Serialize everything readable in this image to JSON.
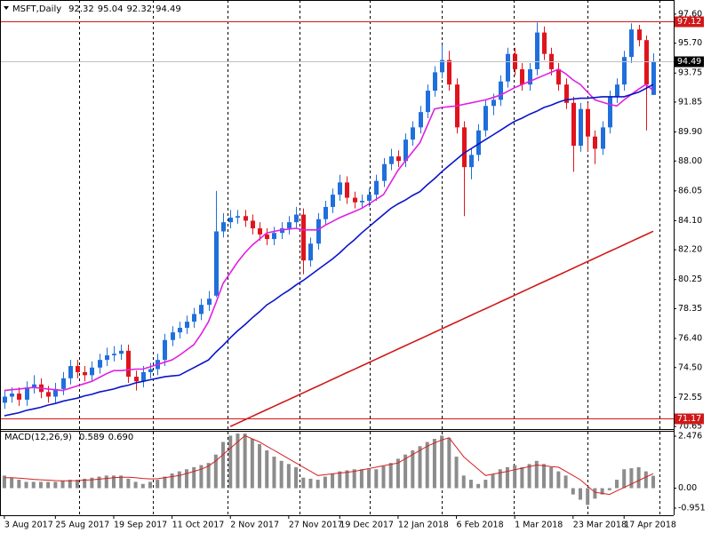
{
  "chart_data": [
    {
      "type": "candlestick",
      "title": "MSFT,Daily",
      "header_values": [
        92.32,
        95.04,
        92.32,
        94.49
      ],
      "up_color": "#1f6fdc",
      "down_color": "#e0141c",
      "x": [
        0,
        1,
        2,
        3,
        4,
        5,
        6,
        7,
        8,
        9,
        10,
        11,
        12,
        13,
        14,
        15,
        16,
        17,
        18,
        19,
        20,
        21,
        22,
        23,
        24,
        25,
        26,
        27,
        28,
        29,
        30,
        31,
        32,
        33,
        34,
        35,
        36,
        37,
        38,
        39,
        40,
        41,
        42,
        43,
        44,
        45,
        46,
        47,
        48,
        49,
        50,
        51,
        52,
        53,
        54,
        55,
        56,
        57,
        58,
        59,
        60,
        61,
        62,
        63,
        64,
        65,
        66,
        67,
        68,
        69,
        70,
        71,
        72,
        73,
        74,
        75,
        76,
        77,
        78,
        79,
        80,
        81,
        82,
        83,
        84,
        85,
        86,
        87,
        88,
        89
      ],
      "open": [
        72.2,
        72.6,
        72.8,
        72.4,
        73.2,
        73.4,
        72.9,
        72.6,
        73.1,
        73.8,
        74.6,
        74.2,
        74.0,
        74.5,
        75.0,
        75.3,
        75.4,
        75.6,
        73.9,
        73.6,
        74.2,
        74.4,
        75.0,
        76.3,
        76.8,
        77.1,
        77.5,
        78.0,
        78.6,
        79.2,
        83.4,
        84.0,
        84.3,
        84.4,
        84.1,
        83.6,
        83.2,
        82.9,
        83.3,
        83.6,
        84.0,
        84.5,
        81.5,
        82.6,
        84.2,
        85.0,
        85.8,
        86.6,
        85.6,
        85.3,
        85.4,
        85.8,
        86.7,
        87.8,
        88.3,
        88.0,
        89.4,
        90.2,
        91.2,
        92.6,
        93.8,
        94.6,
        93.0,
        90.2,
        87.6,
        88.4,
        90.0,
        91.6,
        92.0,
        93.2,
        95.0,
        94.0,
        93.0,
        94.0,
        96.4,
        95.0,
        94.0,
        93.0,
        91.8,
        89.0,
        91.4,
        89.6,
        88.8,
        90.2,
        92.2,
        93.0,
        94.8,
        96.6,
        95.9,
        92.32
      ],
      "high": [
        73.0,
        73.2,
        73.2,
        73.6,
        74.0,
        73.8,
        73.3,
        73.5,
        74.2,
        75.0,
        75.0,
        74.6,
        74.9,
        75.4,
        75.8,
        75.9,
        76.0,
        76.0,
        74.3,
        74.6,
        74.8,
        75.4,
        76.7,
        77.2,
        77.5,
        77.9,
        78.4,
        79.0,
        79.5,
        86.05,
        84.6,
        84.8,
        84.8,
        84.8,
        84.5,
        84.0,
        83.6,
        83.7,
        84.0,
        84.4,
        85.0,
        84.9,
        83.0,
        84.6,
        85.4,
        86.2,
        87.1,
        87.0,
        86.0,
        85.8,
        86.2,
        87.1,
        88.2,
        88.8,
        88.7,
        89.8,
        90.6,
        91.6,
        93.0,
        94.2,
        95.6,
        95.2,
        93.4,
        90.6,
        88.8,
        90.4,
        92.0,
        92.4,
        93.6,
        95.4,
        95.4,
        94.4,
        94.4,
        97.05,
        96.8,
        95.4,
        94.4,
        93.4,
        92.2,
        91.8,
        91.8,
        90.0,
        90.6,
        92.6,
        93.4,
        95.2,
        97.0,
        96.9,
        96.2,
        95.04
      ],
      "low": [
        71.8,
        72.2,
        72.0,
        72.0,
        72.8,
        72.5,
        72.2,
        72.2,
        72.7,
        73.4,
        73.8,
        73.6,
        73.6,
        74.1,
        74.6,
        74.9,
        75.0,
        73.5,
        73.0,
        73.2,
        73.8,
        74.0,
        74.6,
        75.9,
        76.4,
        76.7,
        77.1,
        77.6,
        78.2,
        79.1,
        83.0,
        83.6,
        83.9,
        83.7,
        83.2,
        82.8,
        82.5,
        82.5,
        82.9,
        83.2,
        83.6,
        80.6,
        81.1,
        82.2,
        83.8,
        84.6,
        85.4,
        85.2,
        84.9,
        84.9,
        85.0,
        85.4,
        86.3,
        87.4,
        87.6,
        87.6,
        89.0,
        89.8,
        90.8,
        92.2,
        93.4,
        92.6,
        89.8,
        84.4,
        86.8,
        88.0,
        89.6,
        91.0,
        91.6,
        92.8,
        93.6,
        92.6,
        92.6,
        93.6,
        94.6,
        93.6,
        92.6,
        91.4,
        87.3,
        88.6,
        88.6,
        87.8,
        88.4,
        89.8,
        91.8,
        92.6,
        94.4,
        95.5,
        90.0,
        92.32
      ],
      "close": [
        72.6,
        72.8,
        72.4,
        73.2,
        73.4,
        72.9,
        72.6,
        73.1,
        73.8,
        74.6,
        74.2,
        74.0,
        74.5,
        75.0,
        75.3,
        75.4,
        75.6,
        73.9,
        73.6,
        74.2,
        74.4,
        75.0,
        76.3,
        76.8,
        77.1,
        77.5,
        78.0,
        78.6,
        79.0,
        83.4,
        84.0,
        84.3,
        84.4,
        84.1,
        83.6,
        83.2,
        82.9,
        83.3,
        83.6,
        84.0,
        84.5,
        81.5,
        82.6,
        84.2,
        85.0,
        85.8,
        86.6,
        85.6,
        85.3,
        85.4,
        85.8,
        86.7,
        87.8,
        88.3,
        88.0,
        89.4,
        90.2,
        91.2,
        92.6,
        93.8,
        94.6,
        93.0,
        90.2,
        87.6,
        88.4,
        90.0,
        91.6,
        92.0,
        93.2,
        95.0,
        94.0,
        93.0,
        94.0,
        96.4,
        95.0,
        94.0,
        93.0,
        91.8,
        89.0,
        91.4,
        89.6,
        88.8,
        90.2,
        92.2,
        93.0,
        94.8,
        96.6,
        95.9,
        93.0,
        94.49
      ],
      "series": [
        {
          "color": "#e020e0",
          "values": [
            73.0,
            73.05,
            73.1,
            73.15,
            73.2,
            73.15,
            73.1,
            73.05,
            73.0,
            73.15,
            73.3,
            73.45,
            73.6,
            73.85,
            74.1,
            74.3,
            74.3,
            74.35,
            74.4,
            74.4,
            74.55,
            74.7,
            74.85,
            75.0,
            75.3,
            75.65,
            76.0,
            76.7,
            77.5,
            78.7,
            80.0,
            80.7,
            81.4,
            82.0,
            82.5,
            82.9,
            83.3,
            83.4,
            83.5,
            83.55,
            83.6,
            83.5,
            83.5,
            83.5,
            83.8,
            84.05,
            84.3,
            84.5,
            84.7,
            84.9,
            85.2,
            85.5,
            85.8,
            86.6,
            87.4,
            88.0,
            88.6,
            89.2,
            90.3,
            91.4,
            91.5,
            91.55,
            91.6,
            91.7,
            91.8,
            91.9,
            92.0,
            92.15,
            92.3,
            92.55,
            92.8,
            93.0,
            93.2,
            93.4,
            93.6,
            93.8,
            94.0,
            93.7,
            93.3,
            93.0,
            92.5,
            92.0,
            91.85,
            91.7,
            91.6,
            92.0,
            92.35,
            92.7,
            93.0,
            92.6
          ]
        },
        {
          "color": "#0a14c8",
          "values": [
            71.35,
            71.45,
            71.55,
            71.7,
            71.8,
            71.9,
            72.05,
            72.15,
            72.3,
            72.4,
            72.5,
            72.65,
            72.75,
            72.9,
            73.0,
            73.1,
            73.25,
            73.35,
            73.5,
            73.6,
            73.7,
            73.8,
            73.9,
            73.95,
            74.0,
            74.25,
            74.5,
            74.75,
            75.0,
            75.5,
            75.95,
            76.45,
            76.9,
            77.3,
            77.75,
            78.15,
            78.6,
            78.9,
            79.25,
            79.55,
            79.9,
            80.2,
            80.55,
            80.9,
            81.25,
            81.6,
            82.0,
            82.45,
            82.85,
            83.3,
            83.7,
            84.1,
            84.5,
            84.9,
            85.2,
            85.45,
            85.75,
            86.0,
            86.45,
            86.85,
            87.3,
            87.7,
            88.1,
            88.5,
            88.8,
            89.1,
            89.4,
            89.7,
            90.0,
            90.3,
            90.6,
            90.8,
            91.05,
            91.25,
            91.5,
            91.65,
            91.85,
            92.0,
            92.05,
            92.1,
            92.1,
            92.15,
            92.2,
            92.2,
            92.2,
            92.2,
            92.35,
            92.5,
            92.75,
            93.0
          ]
        },
        {
          "color": "#d01818",
          "values": [
            null,
            null,
            null,
            null,
            null,
            null,
            null,
            null,
            null,
            null,
            null,
            null,
            null,
            null,
            null,
            null,
            null,
            null,
            null,
            null,
            null,
            null,
            null,
            null,
            null,
            null,
            null,
            null,
            null,
            null,
            null,
            70.65,
            70.87,
            71.09,
            71.31,
            71.53,
            71.75,
            71.97,
            72.19,
            72.41,
            72.63,
            72.85,
            73.07,
            73.29,
            73.51,
            73.73,
            73.95,
            74.17,
            74.39,
            74.61,
            74.83,
            75.05,
            75.27,
            75.49,
            75.71,
            75.93,
            76.15,
            76.37,
            76.59,
            76.81,
            77.03,
            77.25,
            77.47,
            77.69,
            77.91,
            78.13,
            78.35,
            78.57,
            78.79,
            79.01,
            79.23,
            79.45,
            79.67,
            79.89,
            80.11,
            80.33,
            80.55,
            80.77,
            80.99,
            81.21,
            81.43,
            81.65,
            81.87,
            82.09,
            82.31,
            82.53,
            82.75,
            82.97,
            83.19,
            83.41
          ]
        }
      ],
      "xlim": [
        -0.6,
        91.8
      ],
      "xticks": [
        {
          "value": 0,
          "label": "3 Aug 2017"
        },
        {
          "value": 7,
          "label": "25 Aug 2017"
        },
        {
          "value": 15,
          "label": "19 Sep 2017"
        },
        {
          "value": 23,
          "label": "11 Oct 2017"
        },
        {
          "value": 31,
          "label": "2 Nov 2017"
        },
        {
          "value": 39,
          "label": "27 Nov 2017"
        },
        {
          "value": 46,
          "label": "19 Dec 2017"
        },
        {
          "value": 54,
          "label": "12 Jan 2018"
        },
        {
          "value": 62,
          "label": "6 Feb 2018"
        },
        {
          "value": 70,
          "label": "1 Mar 2018"
        },
        {
          "value": 78,
          "label": "23 Mar 2018"
        },
        {
          "value": 85,
          "label": "17 Apr 2018"
        }
      ],
      "xgrid": [
        10.2,
        20.4,
        30.6,
        40.5,
        50.1,
        60,
        69.9,
        80,
        89.8
      ],
      "ylim": [
        70.48,
        98.06
      ],
      "yticks": [
        {
          "value": 97.6,
          "label": "97.60"
        },
        {
          "value": 95.7,
          "label": "95.70"
        },
        93.75,
        91.85,
        {
          "value": 89.9,
          "label": "89.90"
        },
        {
          "value": 88,
          "label": "88.00"
        },
        86.05,
        {
          "value": 84.1,
          "label": "84.10"
        },
        {
          "value": 82.2,
          "label": "82.20"
        },
        80.25,
        78.35,
        {
          "value": 76.4,
          "label": "76.40"
        },
        {
          "value": 74.5,
          "label": "74.50"
        },
        72.55,
        70.65
      ],
      "levels": [
        {
          "value": 97.12,
          "line_color": "#d01818",
          "box_color": "#d01818"
        },
        {
          "value": 94.49,
          "line_color": "#c0c0c0",
          "box_color": "#000000"
        },
        {
          "value": 71.17,
          "line_color": "#d01818",
          "box_color": "#d01818"
        }
      ]
    },
    {
      "type": "macd",
      "title": "MACD(12,26,9)",
      "header_values": [
        0.589,
        {
          "value": 0.69,
          "label": "0.690"
        }
      ],
      "series": [
        {
          "type": "bar",
          "color": "#8c8c8c",
          "values": [
            0.6,
            0.5,
            0.4,
            0.3,
            0.3,
            0.3,
            0.3,
            0.3,
            0.35,
            0.4,
            0.4,
            0.45,
            0.5,
            0.55,
            0.6,
            0.6,
            0.6,
            0.45,
            0.3,
            0.2,
            0.3,
            0.4,
            0.55,
            0.7,
            0.8,
            0.9,
            1.0,
            1.1,
            1.2,
            1.6,
            2.2,
            2.5,
            2.6,
            2.6,
            2.35,
            2.1,
            1.8,
            1.5,
            1.3,
            1.15,
            1.0,
            0.5,
            0.45,
            0.4,
            0.55,
            0.7,
            0.8,
            0.85,
            0.9,
            0.9,
            0.9,
            0.9,
            1.05,
            1.2,
            1.4,
            1.6,
            1.8,
            2.0,
            2.2,
            2.35,
            2.5,
            2.4,
            1.5,
            0.6,
            0.4,
            0.2,
            0.4,
            0.65,
            0.9,
            1.0,
            1.1,
            1.0,
            1.15,
            1.3,
            1.15,
            1.0,
            0.8,
            0.6,
            -0.3,
            -0.55,
            -0.8,
            -0.5,
            -0.3,
            -0.1,
            0.4,
            0.9,
            0.95,
            1.0,
            0.8,
            0.589
          ]
        },
        {
          "type": "line",
          "color": "#d42020",
          "values": [
            0.5,
            0.5,
            0.48,
            0.45,
            0.42,
            0.4,
            0.38,
            0.36,
            0.35,
            0.35,
            0.36,
            0.38,
            0.4,
            0.43,
            0.46,
            0.5,
            0.52,
            0.52,
            0.5,
            0.46,
            0.44,
            0.45,
            0.5,
            0.55,
            0.6,
            0.7,
            0.8,
            0.9,
            1.05,
            1.3,
            1.6,
            1.9,
            2.2,
            2.5,
            2.35,
            2.2,
            2.0,
            1.8,
            1.6,
            1.4,
            1.2,
            1.0,
            0.8,
            0.6,
            0.64,
            0.68,
            0.72,
            0.76,
            0.8,
            0.87,
            0.93,
            1.0,
            1.07,
            1.13,
            1.2,
            1.4,
            1.6,
            1.8,
            2.0,
            2.15,
            2.3,
            2.4,
            1.95,
            1.5,
            1.2,
            0.9,
            0.6,
            0.67,
            0.73,
            0.8,
            0.88,
            0.95,
            1.03,
            1.1,
            1.07,
            1.03,
            1.0,
            0.8,
            0.6,
            0.4,
            0.1,
            -0.2,
            -0.25,
            -0.3,
            -0.13,
            0.03,
            0.2,
            0.36,
            0.53,
            0.69
          ]
        }
      ],
      "ylim": [
        -1.29,
        2.73
      ],
      "yticks": [
        2.476,
        {
          "value": 0,
          "label": "0.00"
        },
        -0.951
      ]
    }
  ]
}
